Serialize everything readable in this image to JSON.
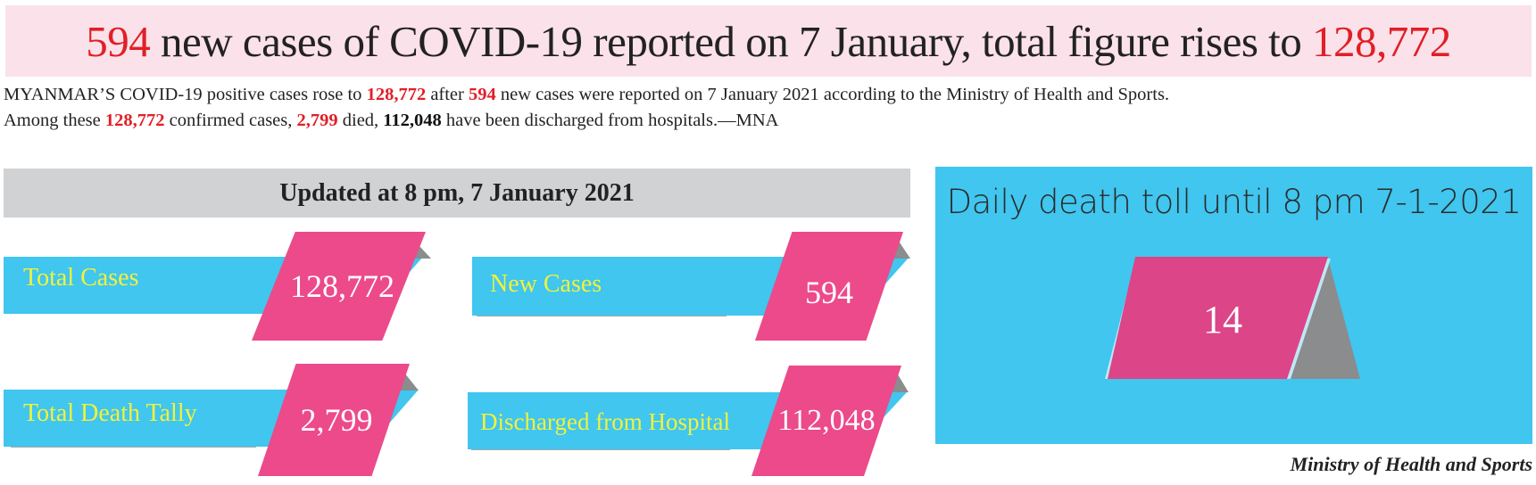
{
  "headline": {
    "new_cases": "594",
    "text": " new cases of COVID-19 reported on 7 January, total figure rises to ",
    "total": "128,772"
  },
  "lede": {
    "line1_a": "MYANMAR’S COVID-19 positive cases rose to ",
    "line1_total": "128,772",
    "line1_b": " after ",
    "line1_new": "594",
    "line1_c": " new cases were reported on 7 January 2021 according to the Ministry of Health and Sports.",
    "line2_a": "Among these ",
    "line2_total": "128,772",
    "line2_b": " confirmed cases, ",
    "line2_died": "2,799",
    "line2_c": " died, ",
    "line2_discharged": "112,048",
    "line2_d": " have been discharged from hospitals.—MNA"
  },
  "updated": "Updated at 8 pm, 7 January 2021",
  "stats": {
    "total_cases": {
      "label": "Total Cases",
      "value": "128,772"
    },
    "new_cases": {
      "label": "New Cases",
      "value": "594"
    },
    "total_death": {
      "label": "Total Death Tally",
      "value": "2,799"
    },
    "discharged": {
      "label": "Discharged from Hospital",
      "value": "112,048"
    }
  },
  "daily_death": {
    "title": "Daily death toll until 8 pm 7-1-2021",
    "value": "14"
  },
  "source": "Ministry of Health and Sports",
  "colors": {
    "highlight_red": "#e11f27",
    "headline_bg": "#fbe1e9",
    "band_blue": "#40c6ef",
    "card_pink": "#ec4a8b",
    "label_yellow": "#f2f23a",
    "bar_grey": "#d1d2d4"
  }
}
